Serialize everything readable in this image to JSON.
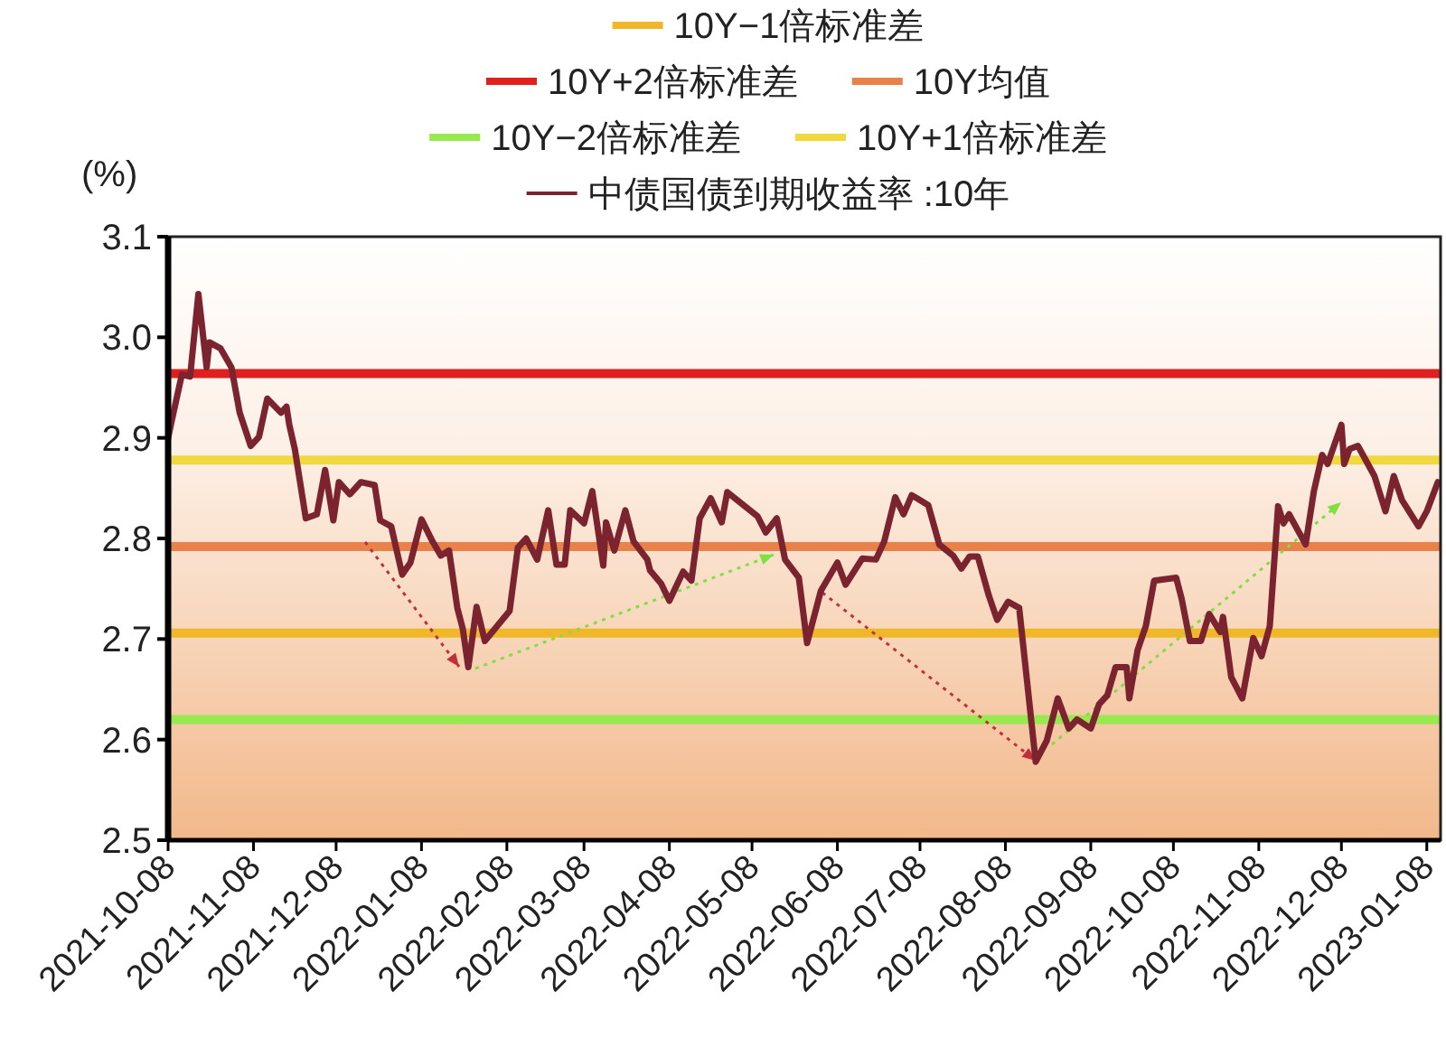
{
  "chart_data": {
    "type": "line",
    "ylabel": "(%)",
    "xlim": [
      "2021-10-08",
      "2023-01-13"
    ],
    "xticks": [
      "2021-10-08",
      "2021-11-08",
      "2021-12-08",
      "2022-01-08",
      "2022-02-08",
      "2022-03-08",
      "2022-04-08",
      "2022-05-08",
      "2022-06-08",
      "2022-07-08",
      "2022-08-08",
      "2022-09-08",
      "2022-10-08",
      "2022-11-08",
      "2022-12-08",
      "2023-01-08"
    ],
    "ylim": [
      2.5,
      3.1
    ],
    "yticks": [
      2.5,
      2.6,
      2.7,
      2.8,
      2.9,
      {
        "value": 3,
        "label": "3.0"
      },
      3.1
    ],
    "grid": false,
    "legend": "top",
    "tick_labels": "xy",
    "ref_lines": [
      {
        "axis": "y",
        "value": 2.706,
        "label": "10Y−1倍标准差",
        "color": "#f0b828"
      },
      {
        "axis": "y",
        "value": 2.964,
        "label": "10Y+2倍标准差",
        "color": "#e0201e"
      },
      {
        "axis": "y",
        "value": 2.792,
        "label": "10Y均值",
        "color": "#e8824a"
      },
      {
        "axis": "y",
        "value": 2.62,
        "label": "10Y−2倍标准差",
        "color": "#98e850"
      },
      {
        "axis": "y",
        "value": 2.878,
        "label": "10Y+1倍标准差",
        "color": "#f0d840"
      }
    ],
    "series": [
      {
        "name": "中债国债到期收益率 :10年",
        "color": "#7b2430",
        "x": [
          "2021-10-08",
          "2021-10-09",
          "2021-10-13",
          "2021-10-16",
          "2021-10-19",
          "2021-10-22",
          "2021-10-23",
          "2021-10-27",
          "2021-10-31",
          "2021-11-03",
          "2021-11-07",
          "2021-11-10",
          "2021-11-13",
          "2021-11-18",
          "2021-11-20",
          "2021-11-21",
          "2021-11-23",
          "2021-11-27",
          "2021-12-01",
          "2021-12-04",
          "2021-12-07",
          "2021-12-09",
          "2021-12-13",
          "2021-12-17",
          "2021-12-22",
          "2021-12-24",
          "2021-12-28",
          "2022-01-01",
          "2022-01-04",
          "2022-01-08",
          "2022-01-12",
          "2022-01-15",
          "2022-01-18",
          "2022-01-21",
          "2022-01-23",
          "2022-01-25",
          "2022-01-28",
          "2022-01-31",
          "2022-02-09",
          "2022-02-12",
          "2022-02-15",
          "2022-02-19",
          "2022-02-23",
          "2022-02-26",
          "2022-03-01",
          "2022-03-03",
          "2022-03-08",
          "2022-03-11",
          "2022-03-15",
          "2022-03-16",
          "2022-03-19",
          "2022-03-23",
          "2022-03-26",
          "2022-03-31",
          "2022-04-01",
          "2022-04-05",
          "2022-04-08",
          "2022-04-13",
          "2022-04-16",
          "2022-04-19",
          "2022-04-23",
          "2022-04-27",
          "2022-04-29",
          "2022-05-10",
          "2022-05-13",
          "2022-05-17",
          "2022-05-20",
          "2022-05-25",
          "2022-05-28",
          "2022-06-02",
          "2022-06-08",
          "2022-06-11",
          "2022-06-17",
          "2022-06-22",
          "2022-06-25",
          "2022-06-29",
          "2022-07-02",
          "2022-07-05",
          "2022-07-11",
          "2022-07-15",
          "2022-07-20",
          "2022-07-23",
          "2022-07-26",
          "2022-07-29",
          "2022-08-02",
          "2022-08-05",
          "2022-08-09",
          "2022-08-13",
          "2022-08-19",
          "2022-08-23",
          "2022-08-27",
          "2022-08-31",
          "2022-09-03",
          "2022-09-08",
          "2022-09-11",
          "2022-09-14",
          "2022-09-17",
          "2022-09-21",
          "2022-09-22",
          "2022-09-25",
          "2022-09-28",
          "2022-10-01",
          "2022-10-09",
          "2022-10-11",
          "2022-10-14",
          "2022-10-18",
          "2022-10-21",
          "2022-10-25",
          "2022-10-26",
          "2022-10-29",
          "2022-11-02",
          "2022-11-06",
          "2022-11-09",
          "2022-11-12",
          "2022-11-15",
          "2022-11-17",
          "2022-11-19",
          "2022-11-25",
          "2022-11-28",
          "2022-12-01",
          "2022-12-03",
          "2022-12-08",
          "2022-12-09",
          "2022-12-11",
          "2022-12-14",
          "2022-12-17",
          "2022-12-20",
          "2022-12-24",
          "2022-12-27",
          "2022-12-30",
          "2023-01-05",
          "2023-01-08",
          "2023-01-12"
        ],
        "values": [
          2.9,
          2.913,
          2.963,
          2.961,
          3.043,
          2.97,
          2.995,
          2.989,
          2.97,
          2.925,
          2.892,
          2.901,
          2.939,
          2.925,
          2.931,
          2.913,
          2.889,
          2.82,
          2.824,
          2.868,
          2.818,
          2.856,
          2.844,
          2.856,
          2.853,
          2.818,
          2.812,
          2.764,
          2.776,
          2.819,
          2.797,
          2.783,
          2.788,
          2.731,
          2.71,
          2.672,
          2.732,
          2.698,
          2.728,
          2.791,
          2.8,
          2.779,
          2.828,
          2.774,
          2.774,
          2.828,
          2.815,
          2.847,
          2.773,
          2.816,
          2.788,
          2.828,
          2.797,
          2.779,
          2.768,
          2.755,
          2.738,
          2.767,
          2.758,
          2.82,
          2.84,
          2.816,
          2.846,
          2.822,
          2.806,
          2.82,
          2.779,
          2.761,
          2.696,
          2.748,
          2.776,
          2.754,
          2.78,
          2.779,
          2.797,
          2.841,
          2.824,
          2.843,
          2.833,
          2.794,
          2.783,
          2.77,
          2.782,
          2.782,
          2.743,
          2.719,
          2.737,
          2.731,
          2.578,
          2.599,
          2.641,
          2.611,
          2.62,
          2.611,
          2.635,
          2.644,
          2.672,
          2.672,
          2.641,
          2.689,
          2.713,
          2.758,
          2.761,
          2.74,
          2.698,
          2.698,
          2.725,
          2.707,
          2.722,
          2.662,
          2.641,
          2.701,
          2.683,
          2.713,
          2.832,
          2.815,
          2.824,
          2.794,
          2.847,
          2.883,
          2.874,
          2.913,
          2.874,
          2.889,
          2.892,
          2.877,
          2.862,
          2.827,
          2.862,
          2.838,
          2.812,
          2.827,
          2.856
        ]
      }
    ]
  }
}
